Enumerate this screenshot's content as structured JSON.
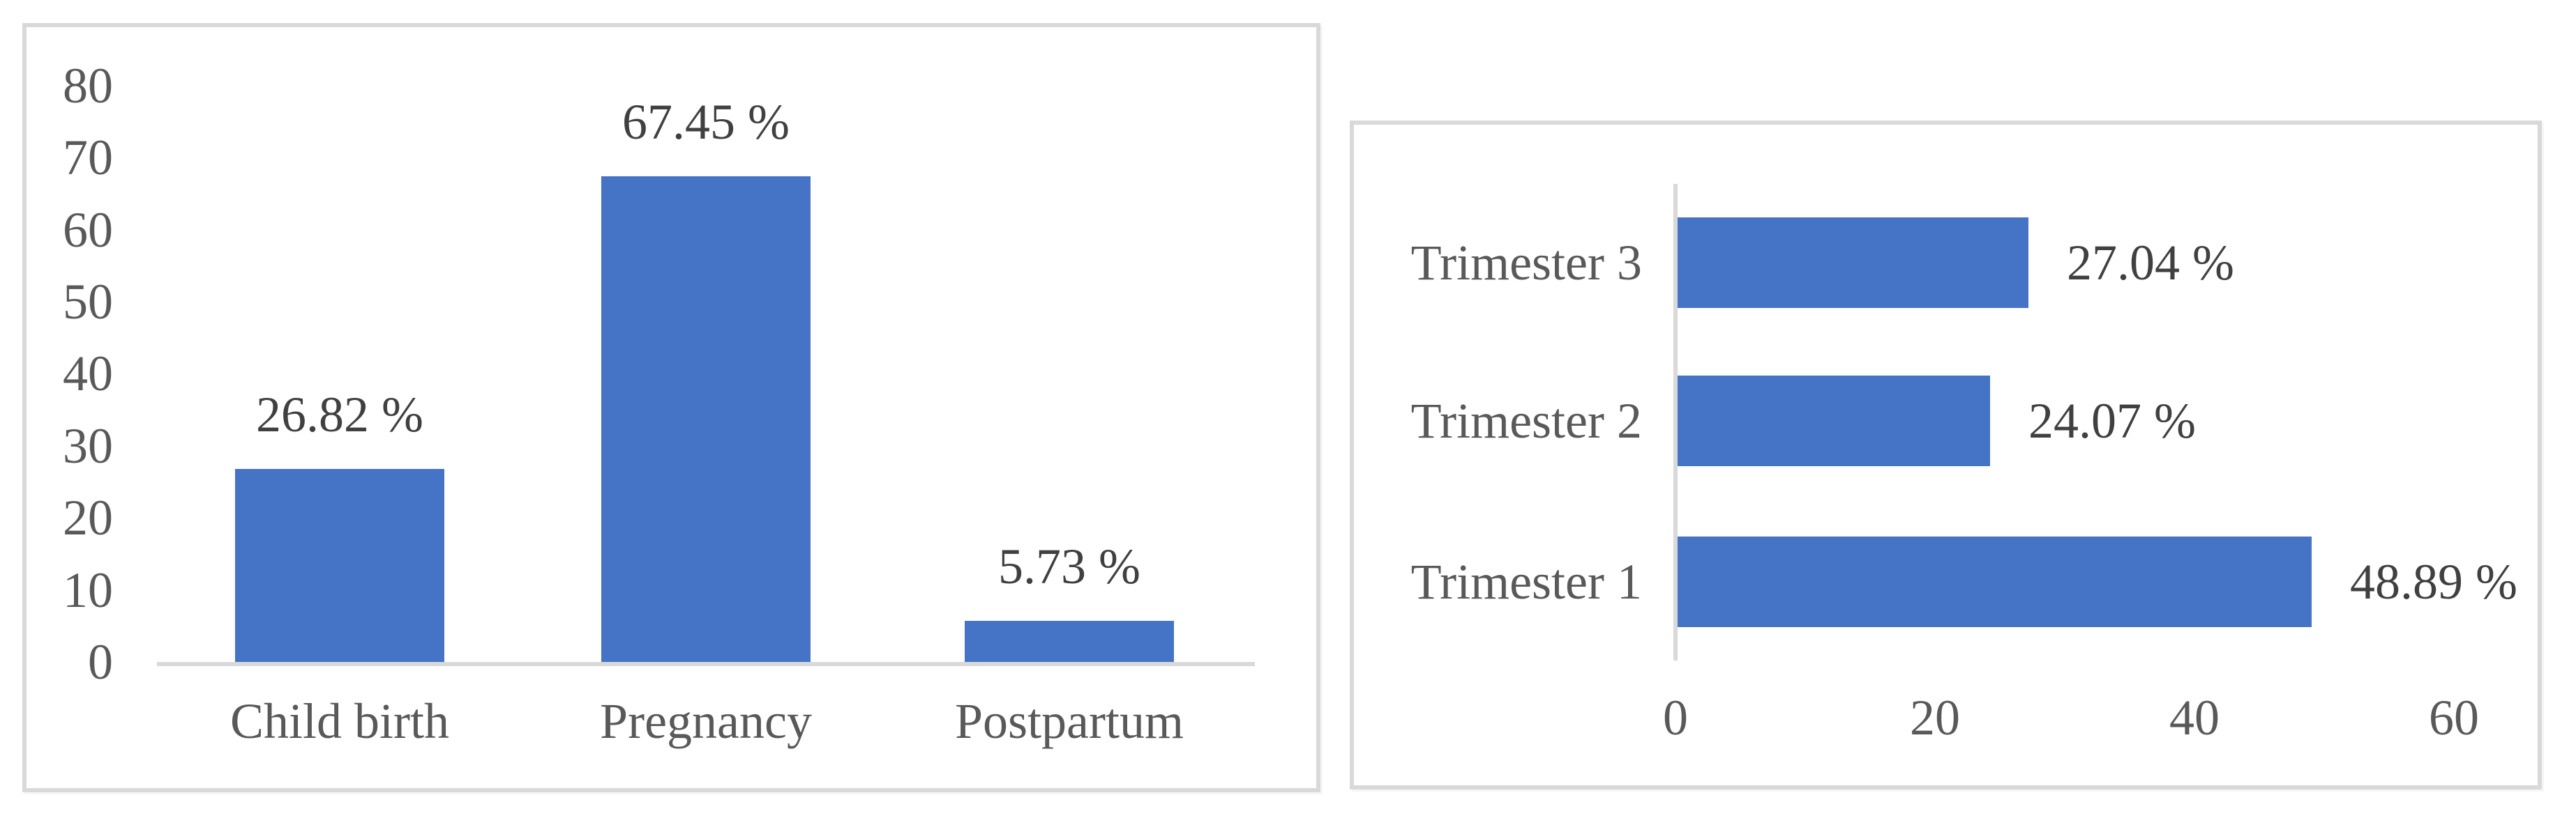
{
  "figure": {
    "background": "#ffffff",
    "bar_color": "#4573C5",
    "axis_line_color": "#d9d9d9",
    "panel_border_color": "#d9d9d9",
    "tick_text_color": "#595959",
    "data_label_color": "#404040"
  },
  "chart_data": [
    {
      "id": "stage-bar-chart",
      "type": "bar",
      "orientation": "vertical",
      "title": "",
      "xlabel": "",
      "ylabel": "",
      "grid": false,
      "legend": false,
      "categories": [
        "Child birth",
        "Pregnancy",
        "Postpartum"
      ],
      "values": [
        26.82,
        67.45,
        5.73
      ],
      "value_labels": [
        "26.82 %",
        "67.45 %",
        "5.73 %"
      ],
      "y_ticks": [
        0,
        10,
        20,
        30,
        40,
        50,
        60,
        70,
        80
      ],
      "y_tick_labels": [
        "0",
        "10",
        "20",
        "30",
        "40",
        "50",
        "60",
        "70",
        "80"
      ],
      "ylim": [
        0,
        80
      ]
    },
    {
      "id": "trimester-bar-chart",
      "type": "bar",
      "orientation": "horizontal",
      "title": "",
      "xlabel": "",
      "ylabel": "",
      "grid": false,
      "legend": false,
      "categories": [
        "Trimester 3",
        "Trimester 2",
        "Trimester 1"
      ],
      "values": [
        27.04,
        24.07,
        48.89
      ],
      "value_labels": [
        "27.04 %",
        "24.07 %",
        "48.89 %"
      ],
      "x_ticks": [
        0,
        20,
        40,
        60
      ],
      "x_tick_labels": [
        "0",
        "20",
        "40",
        "60"
      ],
      "xlim": [
        0,
        60
      ]
    }
  ]
}
